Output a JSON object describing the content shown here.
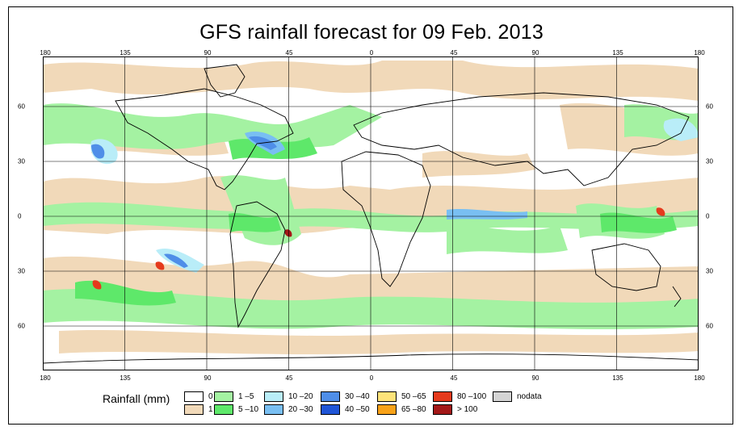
{
  "title": "GFS rainfall forecast for 09 Feb. 2013",
  "lon_ticks": [
    "180",
    "135",
    "90",
    "45",
    "0",
    "45",
    "90",
    "135",
    "180"
  ],
  "lat_ticks": [
    "60",
    "30",
    "0",
    "30",
    "60"
  ],
  "legend": {
    "title": "Rainfall (mm)",
    "items": [
      {
        "label": "0",
        "color": "#ffffff"
      },
      {
        "label": "1",
        "color": "#f1d9b9"
      },
      {
        "label": "1 –5",
        "color": "#a4f2a2"
      },
      {
        "label": "5 –10",
        "color": "#5ee86a"
      },
      {
        "label": "10 –20",
        "color": "#b9edf8"
      },
      {
        "label": "20 –30",
        "color": "#79bff2"
      },
      {
        "label": "30 –40",
        "color": "#4f8ee8"
      },
      {
        "label": "40 –50",
        "color": "#1f55d6"
      },
      {
        "label": "50 –65",
        "color": "#fde37a"
      },
      {
        "label": "65 –80",
        "color": "#f8a218"
      },
      {
        "label": "80 –100",
        "color": "#e53a1c"
      },
      {
        "label": "> 100",
        "color": "#a31818"
      },
      {
        "label": "nodata",
        "color": "#d4d4d4"
      }
    ]
  }
}
